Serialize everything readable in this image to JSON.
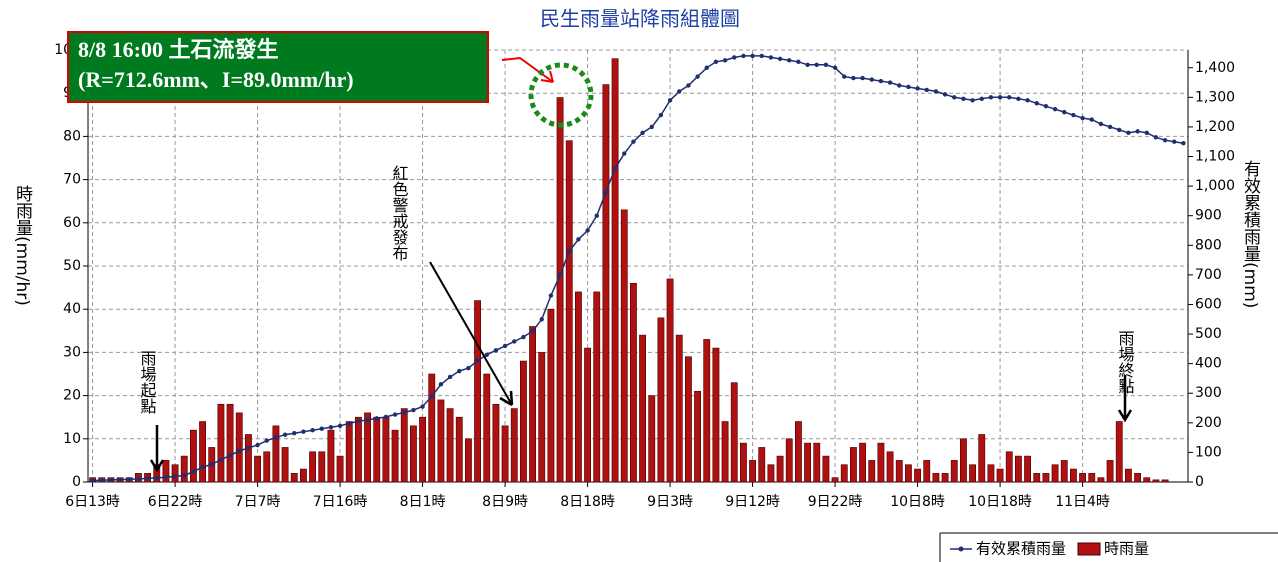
{
  "chart_data": {
    "type": "bar_line",
    "title": "民生雨量站降雨組體圖",
    "y_label": "時雨量(mm/hr)",
    "y2_label": "有效累積雨量(mm)",
    "annotations": [
      "8/8 16:00  土石流發生",
      "(R=712.6mm、I=89.0mm/hr)",
      "紅色警戒發布",
      "雨場起點",
      "雨場終點"
    ],
    "categories": [
      "6日13時",
      null,
      null,
      null,
      null,
      null,
      null,
      null,
      null,
      "6日22時",
      null,
      null,
      null,
      null,
      null,
      null,
      null,
      null,
      "7日7時",
      null,
      null,
      null,
      null,
      null,
      null,
      null,
      null,
      "7日16時",
      null,
      null,
      null,
      null,
      null,
      null,
      null,
      null,
      "8日1時",
      null,
      null,
      null,
      null,
      null,
      null,
      null,
      null,
      "8日9時",
      null,
      null,
      null,
      null,
      null,
      null,
      null,
      null,
      "8日18時",
      null,
      null,
      null,
      null,
      null,
      null,
      null,
      null,
      "9日3時",
      null,
      null,
      null,
      null,
      null,
      null,
      null,
      null,
      "9日12時",
      null,
      null,
      null,
      null,
      null,
      null,
      null,
      null,
      "9日22時",
      null,
      null,
      null,
      null,
      null,
      null,
      null,
      null,
      "10日8時",
      null,
      null,
      null,
      null,
      null,
      null,
      null,
      null,
      "10日18時",
      null,
      null,
      null,
      null,
      null,
      null,
      null,
      null,
      "11日4時",
      null,
      null,
      null,
      null,
      null,
      null,
      null,
      null,
      null,
      null,
      null
    ],
    "series": [
      {
        "name": "有效累積雨量",
        "color": "#1f2f70",
        "axis": "y2",
        "kind": "line",
        "values": [
          5,
          6,
          7,
          8,
          9,
          10,
          12,
          14,
          16,
          19,
          22,
          35,
          50,
          60,
          75,
          90,
          105,
          115,
          125,
          140,
          150,
          160,
          165,
          170,
          175,
          180,
          185,
          190,
          198,
          205,
          210,
          215,
          220,
          228,
          235,
          243,
          255,
          290,
          330,
          355,
          375,
          385,
          410,
          430,
          445,
          460,
          475,
          490,
          510,
          550,
          630,
          700,
          780,
          820,
          850,
          900,
          980,
          1060,
          1110,
          1150,
          1180,
          1200,
          1240,
          1290,
          1320,
          1340,
          1370,
          1400,
          1420,
          1425,
          1435,
          1440,
          1440,
          1440,
          1435,
          1430,
          1425,
          1420,
          1410,
          1410,
          1410,
          1400,
          1370,
          1365,
          1365,
          1360,
          1355,
          1350,
          1340,
          1335,
          1330,
          1325,
          1320,
          1310,
          1300,
          1295,
          1290,
          1295,
          1300,
          1300,
          1300,
          1295,
          1290,
          1280,
          1270,
          1260,
          1250,
          1240,
          1230,
          1225,
          1210,
          1200,
          1190,
          1180,
          1185,
          1180,
          1165,
          1155,
          1150,
          1145
        ]
      },
      {
        "name": "時雨量",
        "color": "#b01010",
        "kind": "bar",
        "values": [
          1,
          1,
          1,
          1,
          1,
          2,
          2,
          4,
          5,
          4,
          6,
          12,
          14,
          8,
          18,
          18,
          16,
          11,
          6,
          7,
          13,
          8,
          2,
          3,
          7,
          7,
          12,
          6,
          14,
          15,
          16,
          15,
          15,
          12,
          17,
          13,
          15,
          25,
          19,
          17,
          15,
          10,
          42,
          25,
          18,
          13,
          17,
          28,
          36,
          30,
          40,
          89,
          79,
          44,
          31,
          44,
          92,
          98,
          63,
          46,
          34,
          20,
          38,
          47,
          34,
          29,
          21,
          33,
          31,
          14,
          23,
          9,
          5,
          8,
          4,
          6,
          10,
          14,
          9,
          9,
          6,
          1,
          4,
          8,
          9,
          5,
          9,
          7,
          5,
          4,
          3,
          5,
          2,
          2,
          5,
          10,
          4,
          11,
          4,
          3,
          7,
          6,
          6,
          2,
          2,
          4,
          5,
          3,
          2,
          2,
          1,
          5,
          14,
          3,
          2,
          1,
          0.5,
          0.5,
          0,
          0
        ]
      }
    ],
    "ylim": [
      0,
      100
    ],
    "yticks": [
      0,
      10,
      20,
      30,
      40,
      50,
      60,
      70,
      80,
      90,
      100
    ],
    "y2lim": [
      0,
      1460
    ],
    "y2ticks": [
      0,
      100,
      200,
      300,
      400,
      500,
      600,
      700,
      800,
      900,
      {
        "value": 1000,
        "label": "1,000"
      },
      {
        "value": 1100,
        "label": "1,100"
      },
      {
        "value": 1200,
        "label": "1,200"
      },
      {
        "value": 1300,
        "label": "1,300"
      },
      {
        "value": 1400,
        "label": "1,400"
      }
    ],
    "grid": true,
    "legend": "bottom-right"
  }
}
